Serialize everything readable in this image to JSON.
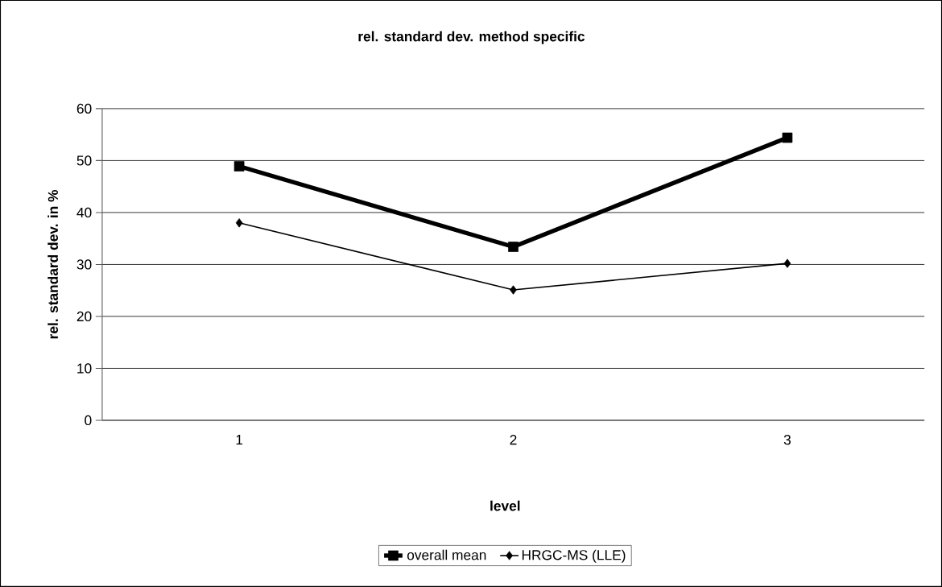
{
  "chart_data": {
    "type": "line",
    "title": "rel. standard dev. method specific",
    "xlabel": "level",
    "ylabel": "rel. standard dev. in %",
    "categories": [
      "1",
      "2",
      "3"
    ],
    "series": [
      {
        "name": "overall mean",
        "color": "#000000",
        "marker": "square",
        "values": [
          48.9,
          33.4,
          54.4
        ]
      },
      {
        "name": "HRGC-MS (LLE)",
        "color": "#000000",
        "marker": "diamond",
        "values": [
          38,
          25.1,
          30.2
        ]
      }
    ],
    "ylim": [
      0,
      60
    ],
    "yticks": [
      0,
      10,
      20,
      30,
      40,
      50,
      60
    ],
    "grid": "y",
    "legend": "bottom",
    "line_style": "solid"
  }
}
